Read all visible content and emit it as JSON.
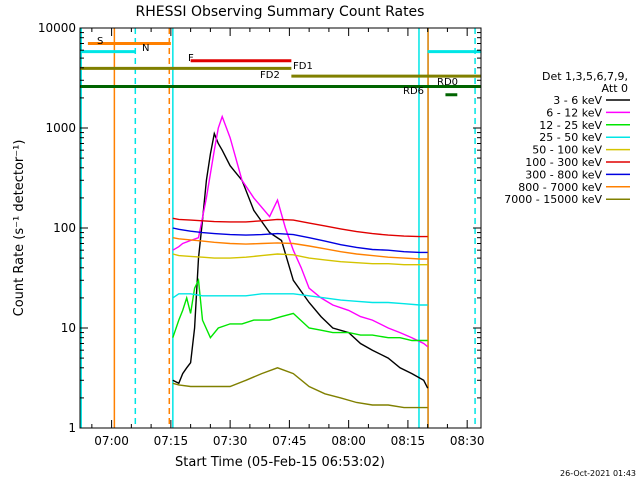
{
  "chart_data": {
    "type": "line",
    "title": "RHESSI Observing Summary Count Rates",
    "xlabel": "Start Time (05-Feb-15 06:53:02)",
    "ylabel": "Count Rate (s⁻¹ detector⁻¹)",
    "y_scale": "log",
    "ylim": [
      1,
      10000
    ],
    "xlim_minutes": [
      412.0,
      513.5
    ],
    "x_tick_minutes": [
      420,
      435,
      450,
      465,
      480,
      495,
      510
    ],
    "x_tick_labels": [
      "07:00",
      "07:15",
      "07:30",
      "07:45",
      "08:00",
      "08:15",
      "08:30"
    ],
    "y_tick_values": [
      1,
      10,
      100,
      1000,
      10000
    ],
    "y_tick_labels": [
      "1",
      "10",
      "100",
      "1000",
      "10000"
    ],
    "legend": {
      "title_line1": "Det 1,3,5,6,7,9,",
      "title_line2": "Att 0",
      "entries": [
        {
          "label": "3 - 6 keV",
          "color": "#000000"
        },
        {
          "label": "6 - 12 keV",
          "color": "#ff00ff"
        },
        {
          "label": "12 - 25 keV",
          "color": "#00e600"
        },
        {
          "label": "25 - 50 keV",
          "color": "#00e6e6"
        },
        {
          "label": "50 - 100 keV",
          "color": "#d4c400"
        },
        {
          "label": "100 - 300 keV",
          "color": "#e00000"
        },
        {
          "label": "300 - 800 keV",
          "color": "#0000e0"
        },
        {
          "label": "800 - 7000 keV",
          "color": "#ff8000"
        },
        {
          "label": "7000 - 15000 keV",
          "color": "#808000"
        }
      ]
    },
    "series": [
      {
        "name": "3 - 6 keV",
        "color": "#000000",
        "x": [
          435.5,
          437,
          438,
          439,
          440,
          441,
          442,
          443,
          444,
          445,
          446,
          447,
          448,
          450,
          453,
          456,
          460,
          463,
          466,
          470,
          473,
          476,
          480,
          483,
          486,
          490,
          493,
          496,
          499,
          500
        ],
        "y": [
          3,
          2.8,
          3.5,
          4,
          4.5,
          10,
          50,
          120,
          300,
          550,
          880,
          700,
          600,
          420,
          300,
          150,
          90,
          75,
          30,
          18,
          13,
          10,
          9,
          7,
          6,
          5,
          4,
          3.5,
          3,
          2.5
        ]
      },
      {
        "name": "6 - 12 keV",
        "color": "#ff00ff",
        "x": [
          435.5,
          437,
          438,
          440,
          442,
          444,
          446,
          447,
          448,
          450,
          453,
          456,
          460,
          462,
          464,
          466,
          468,
          470,
          473,
          476,
          480,
          483,
          486,
          490,
          493,
          496,
          499,
          500
        ],
        "y": [
          60,
          65,
          70,
          75,
          80,
          200,
          600,
          1000,
          1300,
          800,
          300,
          200,
          130,
          190,
          100,
          60,
          40,
          25,
          20,
          17,
          15,
          13,
          12,
          10,
          9,
          8,
          7,
          6.5
        ]
      },
      {
        "name": "12 - 25 keV",
        "color": "#00e600",
        "x": [
          435.5,
          437,
          438,
          439,
          440,
          441,
          442,
          443,
          445,
          447,
          450,
          453,
          456,
          460,
          463,
          466,
          470,
          473,
          476,
          480,
          483,
          486,
          490,
          493,
          496,
          499,
          500
        ],
        "y": [
          8,
          12,
          15,
          20,
          14,
          25,
          30,
          12,
          8,
          10,
          11,
          11,
          12,
          12,
          13,
          14,
          10,
          9.5,
          9,
          9,
          8.5,
          8.5,
          8,
          8,
          7.5,
          7.5,
          7.5
        ]
      },
      {
        "name": "25 - 50 keV",
        "color": "#00e6e6",
        "x": [
          435.5,
          437,
          440,
          443,
          446,
          450,
          454,
          458,
          462,
          466,
          470,
          474,
          478,
          482,
          486,
          490,
          494,
          498,
          500
        ],
        "y": [
          20,
          22,
          22,
          21,
          21,
          21,
          21,
          22,
          22,
          22,
          21,
          20,
          19,
          18.5,
          18,
          18,
          17.5,
          17,
          17
        ]
      },
      {
        "name": "50 - 100 keV",
        "color": "#d4c400",
        "x": [
          435.5,
          437,
          440,
          443,
          446,
          450,
          454,
          458,
          462,
          466,
          470,
          474,
          478,
          482,
          486,
          490,
          494,
          498,
          500
        ],
        "y": [
          55,
          53,
          52,
          51,
          50,
          50,
          51,
          53,
          55,
          54,
          50,
          48,
          46,
          45,
          44,
          44,
          43,
          43,
          43
        ]
      },
      {
        "name": "100 - 300 keV",
        "color": "#e00000",
        "x": [
          435.5,
          437,
          440,
          443,
          446,
          450,
          454,
          458,
          462,
          466,
          470,
          474,
          478,
          482,
          486,
          490,
          494,
          498,
          500
        ],
        "y": [
          125,
          122,
          120,
          118,
          116,
          115,
          115,
          118,
          122,
          120,
          112,
          105,
          98,
          92,
          88,
          85,
          83,
          82,
          82
        ]
      },
      {
        "name": "300 - 800 keV",
        "color": "#0000e0",
        "x": [
          435.5,
          437,
          440,
          443,
          446,
          450,
          454,
          458,
          462,
          466,
          470,
          474,
          478,
          482,
          486,
          490,
          494,
          498,
          500
        ],
        "y": [
          100,
          97,
          93,
          90,
          88,
          86,
          85,
          86,
          88,
          86,
          80,
          74,
          68,
          64,
          61,
          60,
          58,
          57,
          57
        ]
      },
      {
        "name": "800 - 7000 keV",
        "color": "#ff8000",
        "x": [
          435.5,
          437,
          440,
          443,
          446,
          450,
          454,
          458,
          462,
          466,
          470,
          474,
          478,
          482,
          486,
          490,
          494,
          498,
          500
        ],
        "y": [
          80,
          78,
          76,
          74,
          72,
          70,
          69,
          70,
          71,
          70,
          66,
          62,
          58,
          55,
          53,
          51,
          50,
          49,
          49
        ]
      },
      {
        "name": "7000 - 15000 keV",
        "color": "#808000",
        "x": [
          435.5,
          437,
          440,
          443,
          446,
          450,
          454,
          458,
          462,
          466,
          470,
          474,
          478,
          482,
          486,
          490,
          494,
          498,
          500
        ],
        "y": [
          2.8,
          2.7,
          2.6,
          2.6,
          2.6,
          2.6,
          3,
          3.5,
          4,
          3.5,
          2.6,
          2.2,
          2.0,
          1.8,
          1.7,
          1.7,
          1.6,
          1.6,
          1.6
        ]
      }
    ],
    "spans": [
      {
        "label": "S",
        "color": "#ff8000",
        "x0": 414.0,
        "x1": 435.0,
        "y": 7000
      },
      {
        "label": "N",
        "color": "#00e6e6",
        "x0": 412.0,
        "x1": 426.0,
        "y": 5800
      },
      {
        "label": "F",
        "color": "#e00000",
        "x0": 440.0,
        "x1": 465.5,
        "y": 4700
      },
      {
        "label": "FD1",
        "color": "#808000",
        "x0": 412.0,
        "x1": 465.5,
        "y": 3950
      },
      {
        "label": "FD2",
        "color": "#808000",
        "x0": 465.5,
        "x1": 513.5,
        "y": 3300
      },
      {
        "label": "RD0",
        "color": "#006400",
        "x0": 412.0,
        "x1": 513.5,
        "y": 2600
      },
      {
        "label": "RD6",
        "color": "#006400",
        "x0": 504.5,
        "x1": 507.5,
        "y": 2150
      },
      {
        "label": "",
        "color": "#00e6e6",
        "x0": 500.0,
        "x1": 513.5,
        "y": 5800
      }
    ],
    "vlines": [
      {
        "x": 412.3,
        "color": "#00e6e6",
        "style": "solid"
      },
      {
        "x": 420.7,
        "color": "#ff8000",
        "style": "solid"
      },
      {
        "x": 426.0,
        "color": "#00e6e6",
        "style": "dashed"
      },
      {
        "x": 434.6,
        "color": "#ff8000",
        "style": "dashed"
      },
      {
        "x": 435.5,
        "color": "#00e6e6",
        "style": "solid"
      },
      {
        "x": 497.8,
        "color": "#00e6e6",
        "style": "solid"
      },
      {
        "x": 500.1,
        "color": "#00e6e6",
        "style": "solid"
      },
      {
        "x": 500.1,
        "color": "#ff8000",
        "style": "solid"
      },
      {
        "x": 512.0,
        "color": "#00e6e6",
        "style": "dashed"
      }
    ]
  },
  "footer": {
    "timestamp": "26-Oct-2021 01:43"
  }
}
